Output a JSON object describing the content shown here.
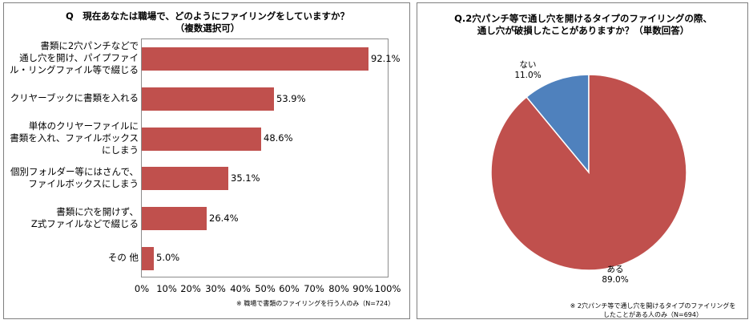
{
  "chart_data": [
    {
      "type": "bar",
      "orientation": "horizontal",
      "title_line1": "Q　現在あなたは職場で、どのようにファイリングをしていますか？",
      "title_line2": "（複数選択可）",
      "categories": [
        [
          "書類に2穴パンチなどで",
          "通し穴を開け、パイプファイ",
          "ル・リングファイル等で綴じる"
        ],
        [
          "クリヤーブックに書類を入れる"
        ],
        [
          "単体のクリヤーファイルに",
          "書類を入れ、ファイルボックス",
          "にしまう"
        ],
        [
          "個別フォルダー等にはさんで、",
          "ファイルボックスにしまう"
        ],
        [
          "書類に穴を開けず、",
          "Z式ファイルなどで綴じる"
        ],
        [
          "その 他"
        ]
      ],
      "values": [
        92.1,
        53.9,
        48.6,
        35.1,
        26.4,
        5.0
      ],
      "value_labels": [
        "92.1%",
        "53.9%",
        "48.6%",
        "35.1%",
        "26.4%",
        "5.0%"
      ],
      "xlim": [
        0,
        100
      ],
      "x_ticks": [
        "0%",
        "10%",
        "20%",
        "30%",
        "40%",
        "50%",
        "60%",
        "70%",
        "80%",
        "90%",
        "100%"
      ],
      "bar_color": "#c0504d",
      "footnote": "※ 職場で書類のファイリングを行う人のみ（N=724）"
    },
    {
      "type": "pie",
      "title_line1": "Q.2穴パンチ等で通し穴を開けるタイプのファイリングの際、",
      "title_line2": "通し穴が破損したことがありますか？（単数回答）",
      "labels": [
        "ある",
        "ない"
      ],
      "values": [
        89.0,
        11.0
      ],
      "value_labels": [
        "89.0%",
        "11.0%"
      ],
      "colors": [
        "#c0504d",
        "#4f81bd"
      ],
      "footnote_line1": "※ 2穴パンチ等で通し穴を開けるタイプのファイリングを",
      "footnote_line2": "したことがある人のみ（N=694）"
    }
  ]
}
